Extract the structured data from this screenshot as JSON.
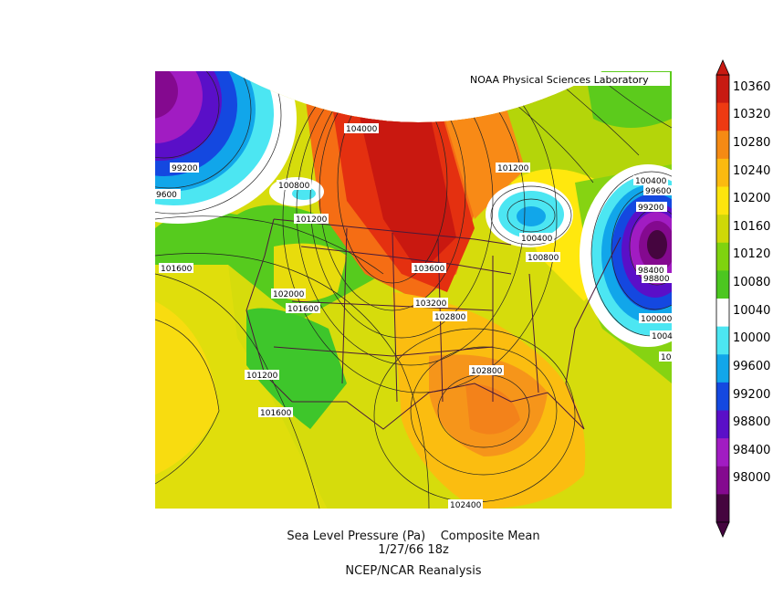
{
  "map": {
    "credit": "NOAA Physical Sciences Laboratory",
    "caption": {
      "variable": "Sea Level Pressure (Pa)",
      "statistic": "Composite Mean",
      "date": "1/27/66 18z",
      "source": "NCEP/NCAR Reanalysis"
    },
    "isobar_labels": [
      "104000",
      "103600",
      "103200",
      "102800",
      "102800",
      "102400",
      "102000",
      "101600",
      "101600",
      "101600",
      "101200",
      "101200",
      "101200",
      "100800",
      "100800",
      "100400",
      "100400",
      "100000",
      "99600",
      "99200",
      "99200",
      "98800",
      "98400",
      "9600",
      "1004",
      "10"
    ],
    "centers": [
      {
        "type": "high",
        "value": "104000",
        "location": "central Canada"
      },
      {
        "type": "high",
        "value": "102800",
        "location": "Gulf Coast"
      },
      {
        "type": "low",
        "value": "98400",
        "location": "western Atlantic"
      },
      {
        "type": "low",
        "value": "99200",
        "location": "Gulf of Alaska"
      },
      {
        "type": "low",
        "value": "100400",
        "location": "Great Lakes"
      }
    ]
  },
  "colorbar": {
    "levels": [
      "10360",
      "10320",
      "10280",
      "10240",
      "10200",
      "10160",
      "10120",
      "10080",
      "10040",
      "10000",
      "99600",
      "99200",
      "98800",
      "98400",
      "98000"
    ],
    "colors": [
      "#c81a12",
      "#ee3a12",
      "#f58a14",
      "#fbba10",
      "#fde40d",
      "#cfd808",
      "#7fd30f",
      "#4cc720",
      "#ffffff",
      "#4ce6f2",
      "#11a6ea",
      "#1448e0",
      "#5a0fc8",
      "#a11cc2",
      "#84098f",
      "#45053f"
    ]
  }
}
